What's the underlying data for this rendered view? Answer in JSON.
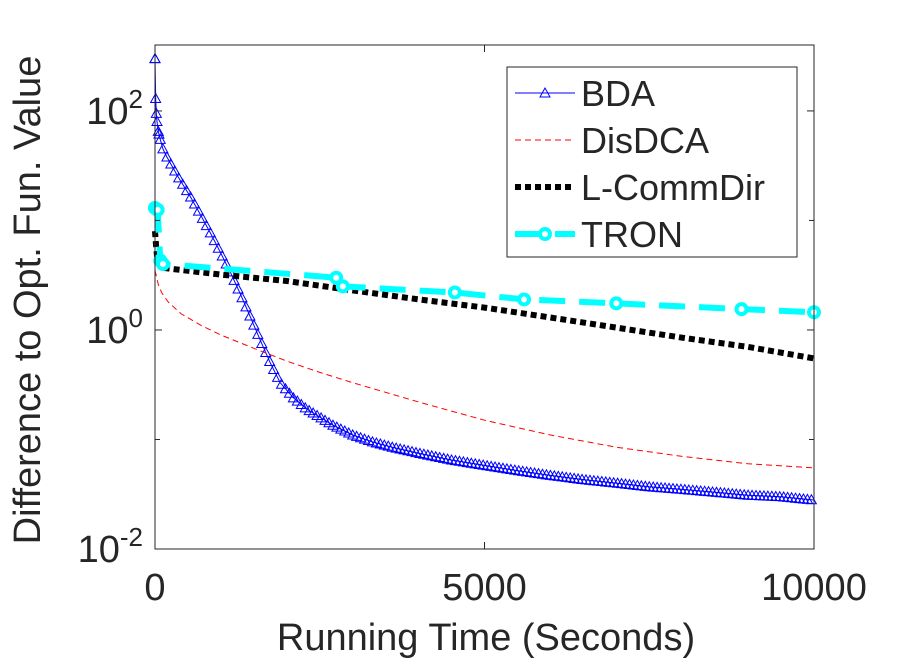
{
  "chart_data": {
    "type": "line",
    "title": "",
    "xlabel": "Running Time (Seconds)",
    "ylabel": "Difference to Opt. Fun. Value",
    "xscale": "linear",
    "yscale": "log",
    "xlim": [
      0,
      10000
    ],
    "ylim": [
      0.01,
      400
    ],
    "xticks": [
      {
        "value": 0,
        "label": "0"
      },
      {
        "value": 5000,
        "label": "5000"
      },
      {
        "value": 10000,
        "label": "10000"
      }
    ],
    "yticks": [
      {
        "value": 0.01,
        "base": "10",
        "exp": "-2"
      },
      {
        "value": 1,
        "base": "10",
        "exp": "0"
      },
      {
        "value": 100,
        "base": "10",
        "exp": "2"
      }
    ],
    "legend_position": "top-right",
    "series": [
      {
        "name": "BDA",
        "color": "#0000ff",
        "line_style": "solid",
        "marker": "triangle",
        "x": [
          0,
          10,
          20,
          30,
          50,
          80,
          120,
          180,
          250,
          350,
          450,
          550,
          700,
          850,
          1000,
          1150,
          1300,
          1450,
          1600,
          1750,
          1900,
          2100,
          2300,
          2500,
          2700,
          3000,
          3300,
          3600,
          4000,
          4500,
          5000,
          5500,
          6000,
          6500,
          7000,
          7500,
          8000,
          8500,
          9000,
          9500,
          10000
        ],
        "y": [
          300,
          130,
          95,
          80,
          65,
          55,
          45,
          38,
          32,
          25,
          20,
          16,
          11,
          7.5,
          5,
          3.3,
          2.1,
          1.3,
          0.8,
          0.5,
          0.33,
          0.24,
          0.19,
          0.16,
          0.135,
          0.11,
          0.095,
          0.085,
          0.075,
          0.065,
          0.058,
          0.052,
          0.047,
          0.043,
          0.04,
          0.037,
          0.035,
          0.033,
          0.031,
          0.03,
          0.028
        ]
      },
      {
        "name": "DisDCA",
        "color": "#ff0000",
        "line_style": "dashed",
        "marker": "none",
        "x": [
          0,
          50,
          100,
          200,
          400,
          700,
          1000,
          1500,
          2000,
          2500,
          3000,
          4000,
          5000,
          6000,
          7000,
          8000,
          9000,
          10000
        ],
        "y": [
          3.5,
          2.6,
          2.2,
          1.8,
          1.4,
          1.1,
          0.9,
          0.68,
          0.52,
          0.41,
          0.33,
          0.22,
          0.15,
          0.11,
          0.085,
          0.07,
          0.06,
          0.055
        ]
      },
      {
        "name": "L-CommDir",
        "color": "#000000",
        "line_style": "dotted",
        "marker": "none",
        "x": [
          0,
          20,
          40,
          100,
          1000,
          2000,
          3000,
          4000,
          5000,
          6000,
          7000,
          8000,
          9000,
          10000
        ],
        "y": [
          8,
          5.5,
          4.2,
          3.7,
          3.2,
          2.8,
          2.3,
          1.9,
          1.6,
          1.3,
          1.05,
          0.85,
          0.7,
          0.55
        ]
      },
      {
        "name": "TRON",
        "color": "#00ffff",
        "line_style": "dashed",
        "marker": "circle",
        "x": [
          0,
          40,
          80,
          120,
          2750,
          2850,
          4550,
          5600,
          7000,
          8900,
          10000
        ],
        "y": [
          13,
          12.5,
          4.3,
          4,
          3,
          2.5,
          2.2,
          1.9,
          1.75,
          1.55,
          1.45
        ]
      }
    ]
  }
}
